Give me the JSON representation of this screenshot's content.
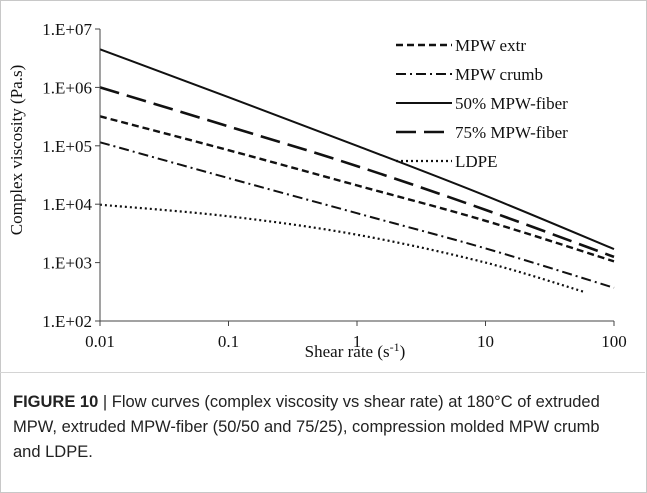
{
  "chart_data": {
    "type": "line",
    "xscale": "log",
    "yscale": "log",
    "xlabel": "Shear rate (s",
    "xlabel_sup": "-1",
    "xlabel_tail": ")",
    "ylabel": "Complex viscosity (Pa.s)",
    "xlim": [
      0.01,
      100
    ],
    "ylim": [
      100,
      10000000
    ],
    "x_ticks": [
      0.01,
      0.1,
      1,
      10,
      100
    ],
    "x_tick_labels": [
      "0.01",
      "0.1",
      "1",
      "10",
      "100"
    ],
    "y_ticks": [
      100,
      1000,
      10000,
      100000,
      1000000,
      10000000
    ],
    "y_tick_labels": [
      "1.E+02",
      "1.E+03",
      "1.E+04",
      "1.E+05",
      "1.E+06",
      "1.E+07"
    ],
    "grid": false,
    "legend_position": "top-right",
    "series": [
      {
        "name": "MPW extr",
        "style": "dashed",
        "x": [
          0.01,
          0.1,
          1,
          10,
          100
        ],
        "y": [
          320000,
          84000,
          21000,
          5200,
          1050
        ]
      },
      {
        "name": "MPW crumb",
        "style": "dashdot",
        "x": [
          0.01,
          0.1,
          1,
          10,
          100
        ],
        "y": [
          115000,
          28000,
          7000,
          1750,
          370
        ]
      },
      {
        "name": "50% MPW-fiber",
        "style": "solid",
        "x": [
          0.01,
          0.1,
          1,
          10,
          100
        ],
        "y": [
          4500000,
          680000,
          100000,
          14000,
          1700
        ]
      },
      {
        "name": "75% MPW-fiber",
        "style": "longdash",
        "x": [
          0.01,
          0.1,
          1,
          10,
          100
        ],
        "y": [
          1000000,
          215000,
          45000,
          8000,
          1250
        ]
      },
      {
        "name": "LDPE",
        "style": "dotted",
        "x": [
          0.01,
          0.1,
          1,
          10,
          60
        ],
        "y": [
          9800,
          6200,
          3000,
          1000,
          310
        ]
      }
    ]
  },
  "caption": {
    "label": "FIGURE 10",
    "separator": " | ",
    "text": "Flow curves (complex viscosity vs shear rate) at 180°C of extruded MPW, extruded MPW-fiber (50/50 and 75/25), compression molded MPW crumb and LDPE."
  }
}
